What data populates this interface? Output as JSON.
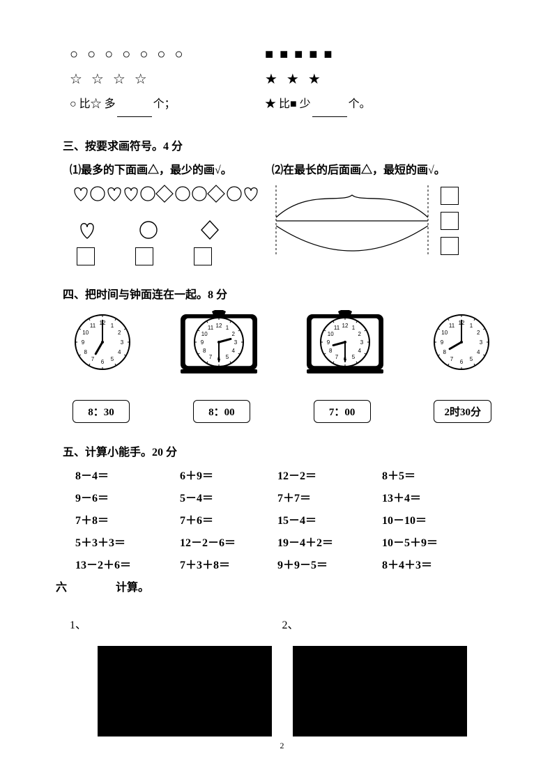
{
  "colors": {
    "fg": "#000000",
    "bg": "#ffffff"
  },
  "q2": {
    "left_circles": "○ ○ ○ ○ ○ ○ ○",
    "left_stars": "☆ ☆ ☆ ☆",
    "left_text_a": "○ 比☆ 多",
    "left_text_b": "个；",
    "right_squares": "■ ■ ■ ■ ■",
    "right_stars": "★ ★ ★",
    "right_text_a": "★ 比■ 少",
    "right_text_b": "个。"
  },
  "q3": {
    "heading": "三、按要求画符号。4 分",
    "sub1": "⑴最多的下面画△，最少的画√。",
    "sub2": "⑵在最长的后面画△，最短的画√。",
    "icons_line": "♡○♡♡○◇○○◇○♡"
  },
  "q4": {
    "heading": "四、把时间与钟面连在一起。8 分",
    "times": [
      "8：30",
      "8：00",
      "7：00",
      "2时30分"
    ],
    "clocks": [
      {
        "style": "plain",
        "hour": 7,
        "minute": 0
      },
      {
        "style": "alarm",
        "hour": 2,
        "minute": 30
      },
      {
        "style": "alarm",
        "hour": 8,
        "minute": 30
      },
      {
        "style": "plain",
        "hour": 8,
        "minute": 0
      }
    ]
  },
  "q5": {
    "heading": "五、计算小能手。20 分",
    "rows": [
      [
        "8－4＝",
        "6＋9＝",
        "12－2＝",
        "8＋5＝"
      ],
      [
        "9－6＝",
        "5－4＝",
        "7＋7＝",
        "13＋4＝"
      ],
      [
        "7＋8＝",
        "7＋6＝",
        "15－4＝",
        "10－10＝"
      ],
      [
        "5＋3＋3＝",
        "12－2－6＝",
        "19－4＋2＝",
        "10－5＋9＝"
      ],
      [
        "13－2＋6＝",
        "7＋3＋8＝",
        "9＋9－5＝",
        "8＋4＋3＝"
      ]
    ]
  },
  "q6": {
    "heading_a": "六",
    "heading_b": "计算。",
    "labels": [
      "1、",
      "2、"
    ]
  },
  "page_number": "2"
}
